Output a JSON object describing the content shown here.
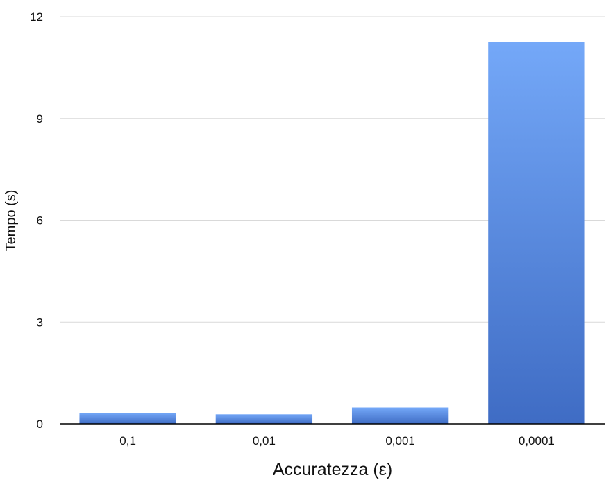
{
  "chart_data": {
    "type": "bar",
    "title": "",
    "xlabel": "Accuratezza (ε)",
    "ylabel": "Tempo (s)",
    "categories": [
      "0,1",
      "0,01",
      "0,001",
      "0,0001"
    ],
    "values": [
      0.32,
      0.28,
      0.48,
      11.25
    ],
    "ylim": [
      0,
      12
    ],
    "yticks": [
      0,
      3,
      6,
      9,
      12
    ],
    "ytick_labels": [
      "0",
      "3",
      "6",
      "9",
      "12"
    ],
    "grid": true,
    "legend": "none",
    "colors": {
      "bar_top": "#74a8f8",
      "bar_bottom": "#3f6cc4",
      "gridline": "#d9d9d9",
      "axis": "#000000"
    }
  }
}
